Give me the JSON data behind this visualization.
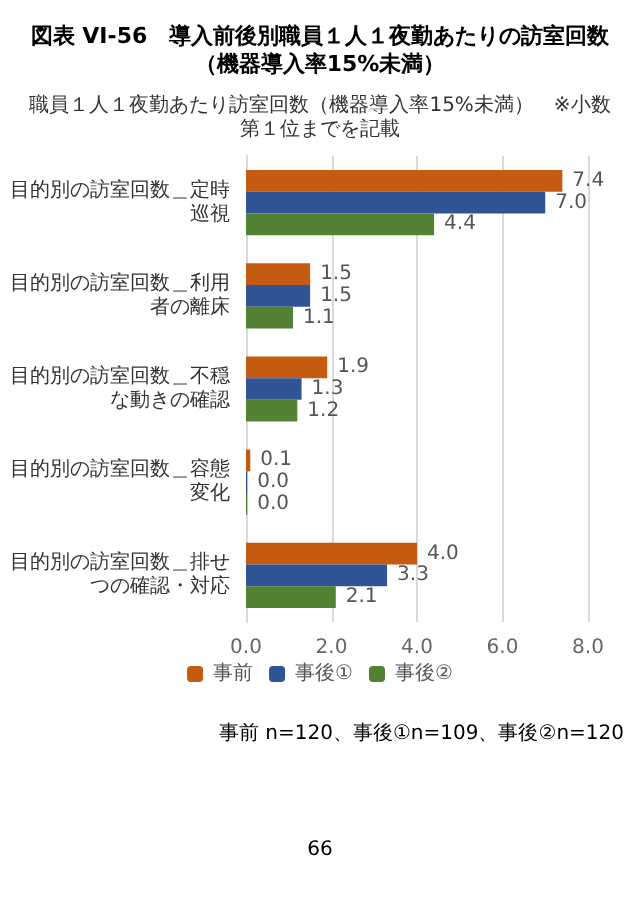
{
  "chart_data": {
    "type": "bar",
    "orientation": "horizontal",
    "title": "図表 VI-56　導入前後別職員１人１夜勤あたりの訪室回数（機器導入率15%未満）",
    "subtitle": "職員１人１夜勤あたり訪室回数（機器導入率15%未満）　※小数第１位までを記載",
    "categories": [
      "目的別の訪室回数＿定時巡視",
      "目的別の訪室回数＿利用者の離床",
      "目的別の訪室回数＿不穏な動きの確認",
      "目的別の訪室回数＿容態変化",
      "目的別の訪室回数＿排せつの確認・対応"
    ],
    "series": [
      {
        "name": "事前",
        "color": "#c55a11",
        "values": [
          7.4,
          1.5,
          1.9,
          0.1,
          4.0
        ],
        "value_labels": [
          "7.4",
          "1.5",
          "1.9",
          "0.1",
          "4.0"
        ]
      },
      {
        "name": "事後①",
        "color": "#2f5597",
        "values": [
          7.0,
          1.5,
          1.3,
          0.0,
          3.3
        ],
        "value_labels": [
          "7.0",
          "1.5",
          "1.3",
          "0.0",
          "3.3"
        ]
      },
      {
        "name": "事後②",
        "color": "#548235",
        "values": [
          4.4,
          1.1,
          1.2,
          0.0,
          2.1
        ],
        "value_labels": [
          "4.4",
          "1.1",
          "1.2",
          "0.0",
          "2.1"
        ]
      }
    ],
    "xlim": [
      0,
      8
    ],
    "xticks": [
      {
        "value": 0,
        "label": "0.0"
      },
      {
        "value": 2,
        "label": "2.0"
      },
      {
        "value": 4,
        "label": "4.0"
      },
      {
        "value": 6,
        "label": "6.0"
      },
      {
        "value": 8,
        "label": "8.0"
      }
    ],
    "grid": "x",
    "legend": "bottom",
    "annotations": [
      "事前 n=120、事後①n=109、事後②n=120",
      "66"
    ]
  }
}
